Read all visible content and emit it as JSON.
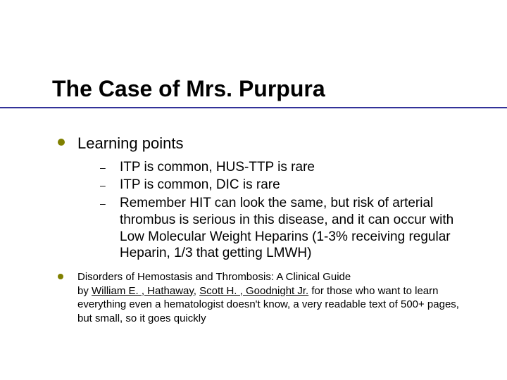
{
  "colors": {
    "bullet": "#808000",
    "underline": "#333399",
    "text": "#000000",
    "background": "#ffffff"
  },
  "title": "The Case of Mrs. Purpura",
  "learning_heading": "Learning points",
  "learning": [
    "ITP is common, HUS-TTP is rare",
    "ITP is common, DIC is rare",
    "Remember HIT can look the same, but risk of arterial thrombus is serious in this disease, and it can occur with Low Molecular Weight Heparins (1-3% receiving regular Heparin, 1/3 that getting LMWH)"
  ],
  "reference": {
    "title": "Disorders of Hemostasis and Thrombosis: A Clinical Guide",
    "by_word": "by ",
    "author1": "William E. , Hathaway",
    "sep": ", ",
    "author2": "Scott H. , Goodnight Jr.",
    "tail": " for those who want to learn everything even a hematologist doesn't know, a very readable text of 500+ pages, but small, so it goes quickly"
  }
}
